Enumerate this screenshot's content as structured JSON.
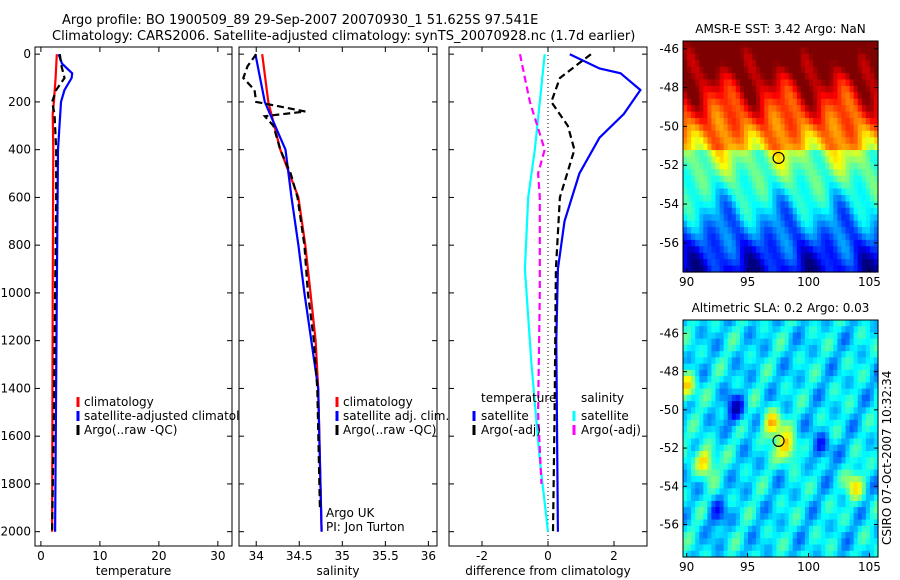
{
  "title": {
    "line1": "Argo profile: BO 1900509_89 29-Sep-2007 20070930_1 51.625S 97.541E",
    "line2": "Climatology: CARS2006. Satellite-adjusted climatology: synTS_20070928.nc (1.7d earlier)"
  },
  "side_stamp": "CSIRO 07-Oct-2007 10:32:34",
  "colors": {
    "clim": "#ff0000",
    "sat": "#0000ff",
    "argo": "#000000",
    "sal_sat": "#00ffff",
    "sal_argo": "#ff00ff"
  },
  "chart_data": [
    {
      "type": "line",
      "id": "temperature",
      "xlabel": "temperature",
      "ylabel": "",
      "xlim": [
        -1,
        32.4
      ],
      "ylim": [
        2060,
        -30
      ],
      "xticks": [
        0,
        10,
        20,
        30
      ],
      "yticks": [
        0,
        200,
        400,
        600,
        800,
        1000,
        1200,
        1400,
        1600,
        1800,
        2000
      ],
      "legend": [
        "climatology",
        "satellite-adjusted climatology",
        "Argo(..raw -QC)"
      ],
      "series": [
        {
          "name": "climatology",
          "color": "#ff0000",
          "style": "solid",
          "depth": [
            0,
            100,
            200,
            250,
            400,
            1000,
            2000
          ],
          "values": [
            2.7,
            2.5,
            2.2,
            2.0,
            2.1,
            2.0,
            1.9
          ]
        },
        {
          "name": "satellite-adjusted climatology",
          "color": "#0000ff",
          "style": "solid",
          "depth": [
            0,
            40,
            80,
            100,
            150,
            200,
            400,
            1000,
            2000
          ],
          "values": [
            3.0,
            3.6,
            5.3,
            5.2,
            4.0,
            3.4,
            2.9,
            2.7,
            2.4
          ]
        },
        {
          "name": "Argo(..raw -QC)",
          "color": "#000000",
          "style": "dashed",
          "depth": [
            0,
            50,
            100,
            150,
            200,
            250,
            400,
            600,
            1000,
            1500,
            2000
          ],
          "values": [
            3.2,
            3.5,
            4.0,
            2.6,
            1.9,
            2.3,
            2.6,
            2.6,
            2.4,
            2.2,
            1.9
          ]
        }
      ]
    },
    {
      "type": "line",
      "id": "salinity",
      "xlabel": "salinity",
      "xlim": [
        33.8,
        36.1
      ],
      "ylim": [
        2060,
        -30
      ],
      "xticks": [
        34,
        34.5,
        35,
        35.5,
        36
      ],
      "legend": [
        "climatology",
        "satellite adj. clim.",
        "Argo(..raw -QC)"
      ],
      "annotation": [
        "Argo UK",
        "PI: Jon Turton"
      ],
      "series": [
        {
          "name": "climatology",
          "color": "#ff0000",
          "style": "solid",
          "depth": [
            0,
            200,
            400,
            600,
            800,
            1000,
            1200,
            1400,
            2000
          ],
          "values": [
            34.07,
            34.14,
            34.28,
            34.49,
            34.57,
            34.63,
            34.69,
            34.72,
            34.76
          ]
        },
        {
          "name": "satellite adj. clim.",
          "color": "#0000ff",
          "style": "solid",
          "depth": [
            0,
            200,
            400,
            600,
            800,
            1000,
            1400,
            2000
          ],
          "values": [
            33.99,
            34.1,
            34.34,
            34.41,
            34.49,
            34.56,
            34.72,
            34.76
          ]
        },
        {
          "name": "Argo(..raw -QC)",
          "color": "#000000",
          "style": "dashed",
          "depth": [
            0,
            50,
            100,
            150,
            200,
            240,
            260,
            300,
            400,
            500,
            600,
            800,
            1000,
            1200,
            1400,
            1900
          ],
          "values": [
            34.0,
            33.9,
            33.85,
            33.98,
            34.0,
            34.57,
            34.1,
            34.2,
            34.28,
            34.4,
            34.48,
            34.56,
            34.6,
            34.67,
            34.71,
            34.74
          ]
        }
      ]
    },
    {
      "type": "line",
      "id": "difference",
      "xlabel": "difference from climatology",
      "xlim": [
        -3,
        3
      ],
      "ylim": [
        2060,
        -30
      ],
      "xticks": [
        -2,
        0,
        2
      ],
      "legend_titles": [
        "temperature",
        "salinity"
      ],
      "legend": [
        "satellite",
        "Argo(-adj)",
        "satellite",
        "Argo(-adj)"
      ],
      "series": [
        {
          "name": "temperature satellite",
          "color": "#0000ff",
          "style": "solid",
          "depth": [
            0,
            60,
            80,
            150,
            250,
            350,
            500,
            700,
            900,
            1200,
            2000
          ],
          "values": [
            0.66,
            1.56,
            2.2,
            2.8,
            2.3,
            1.56,
            0.95,
            0.5,
            0.3,
            0.25,
            0.3
          ]
        },
        {
          "name": "temperature Argo(-adj)",
          "color": "#000000",
          "style": "dashed",
          "depth": [
            0,
            100,
            200,
            300,
            400,
            600,
            900,
            1500,
            2000
          ],
          "values": [
            1.3,
            0.36,
            0.1,
            0.6,
            0.8,
            0.36,
            0.24,
            0.2,
            0.15
          ]
        },
        {
          "name": "salinity satellite",
          "color": "#00ffff",
          "style": "solid",
          "depth": [
            0,
            200,
            400,
            600,
            900,
            1300,
            1700,
            2000
          ],
          "values": [
            -0.1,
            -0.25,
            -0.4,
            -0.6,
            -0.7,
            -0.5,
            -0.25,
            0
          ]
        },
        {
          "name": "salinity Argo(-adj)",
          "color": "#ff00ff",
          "style": "dashed",
          "depth": [
            0,
            100,
            200,
            400,
            500,
            600,
            1000,
            1500,
            1800
          ],
          "values": [
            -0.85,
            -0.7,
            -0.55,
            -0.1,
            -0.3,
            -0.25,
            -0.25,
            -0.3,
            -0.2
          ]
        }
      ]
    },
    {
      "type": "heatmap",
      "id": "sst-map",
      "title": "AMSR-E SST: 3.42 Argo: NaN",
      "xlim": [
        89.7,
        105.7
      ],
      "ylim": [
        -57.5,
        -45.6
      ],
      "xticks": [
        90,
        95,
        100,
        105
      ],
      "yticks": [
        -46,
        -48,
        -50,
        -52,
        -54,
        -56
      ],
      "colormap": "jet",
      "marker": {
        "lon": 97.541,
        "lat": -51.625
      }
    },
    {
      "type": "heatmap",
      "id": "sla-map",
      "title": "Altimetric SLA: 0.2 Argo: 0.03",
      "xlim": [
        89.7,
        105.7
      ],
      "ylim": [
        -57.7,
        -45.3
      ],
      "xticks": [
        90,
        95,
        100,
        105
      ],
      "yticks": [
        -46,
        -48,
        -50,
        -52,
        -54,
        -56
      ],
      "colormap": "jet",
      "marker": {
        "lon": 97.541,
        "lat": -51.625
      }
    }
  ]
}
